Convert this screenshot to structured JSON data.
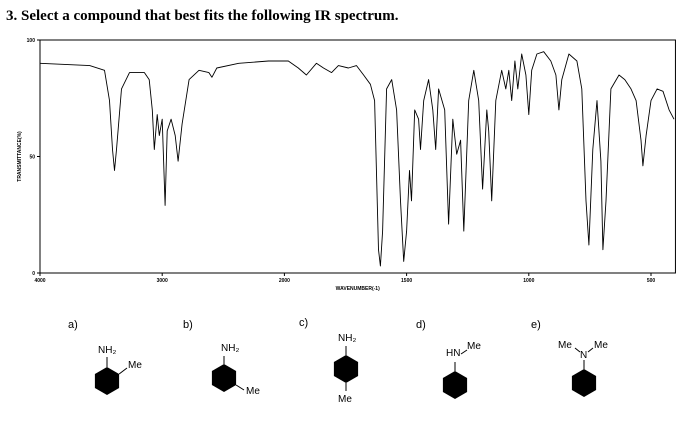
{
  "question": {
    "title": "3. Select a compound that best fits the following IR spectrum."
  },
  "chart_data": {
    "type": "line",
    "xlabel": "WAVENUMBER(-1)",
    "ylabel": "TRANSMITTANCE(%)",
    "xlim": [
      4000,
      400
    ],
    "ylim": [
      0,
      100
    ],
    "xticks": [
      4000,
      3000,
      2000,
      1500,
      1000,
      500
    ],
    "yticks": [
      0,
      50,
      100
    ],
    "color": "#000000",
    "x": [
      4000,
      3593,
      3472,
      3431,
      3407,
      3390,
      3374,
      3333,
      3268,
      3146,
      3106,
      3081,
      3065,
      3041,
      3024,
      3000,
      2976,
      2959,
      2927,
      2894,
      2870,
      2837,
      2780,
      2699,
      2618,
      2593,
      2553,
      2374,
      2130,
      1984,
      1943,
      1910,
      1869,
      1840,
      1807,
      1779,
      1738,
      1705,
      1676,
      1648,
      1631,
      1615,
      1607,
      1598,
      1582,
      1561,
      1541,
      1525,
      1512,
      1500,
      1488,
      1480,
      1467,
      1451,
      1443,
      1430,
      1410,
      1393,
      1381,
      1369,
      1344,
      1328,
      1311,
      1295,
      1279,
      1266,
      1246,
      1225,
      1205,
      1189,
      1172,
      1164,
      1152,
      1135,
      1111,
      1094,
      1082,
      1070,
      1057,
      1045,
      1029,
      1012,
      1000,
      988,
      967,
      939,
      910,
      889,
      877,
      865,
      836,
      803,
      783,
      766,
      754,
      738,
      721,
      705,
      697,
      684,
      664,
      631,
      607,
      582,
      561,
      541,
      533,
      520,
      500,
      475,
      451,
      426,
      406
    ],
    "values": [
      90,
      89,
      87,
      74,
      53,
      44,
      53,
      79,
      86,
      86,
      83,
      70,
      53,
      68,
      59,
      66,
      29,
      61,
      66,
      59,
      48,
      64,
      83,
      87,
      86,
      84,
      88,
      90,
      91,
      91,
      88,
      85,
      90,
      88,
      86,
      89,
      88,
      89,
      85,
      81,
      74,
      10,
      3,
      18,
      79,
      83,
      70,
      31,
      5,
      18,
      44,
      31,
      70,
      66,
      53,
      74,
      83,
      70,
      53,
      79,
      70,
      21,
      66,
      51,
      57,
      18,
      74,
      87,
      74,
      36,
      70,
      61,
      31,
      74,
      87,
      79,
      87,
      74,
      91,
      79,
      94,
      85,
      68,
      87,
      94,
      95,
      91,
      85,
      70,
      83,
      94,
      91,
      79,
      31,
      12,
      53,
      74,
      48,
      10,
      31,
      79,
      85,
      83,
      79,
      74,
      57,
      46,
      59,
      74,
      79,
      78,
      70,
      66
    ]
  },
  "options": [
    {
      "label": "a)",
      "groups": [
        "NH₂",
        "Me"
      ]
    },
    {
      "label": "b)",
      "groups": [
        "NH₂",
        "Me"
      ]
    },
    {
      "label": "c)",
      "groups": [
        "NH₂",
        "Me"
      ]
    },
    {
      "label": "d)",
      "groups": [
        "HN",
        "Me"
      ]
    },
    {
      "label": "e)",
      "groups": [
        "Me",
        "N",
        "Me"
      ]
    }
  ]
}
